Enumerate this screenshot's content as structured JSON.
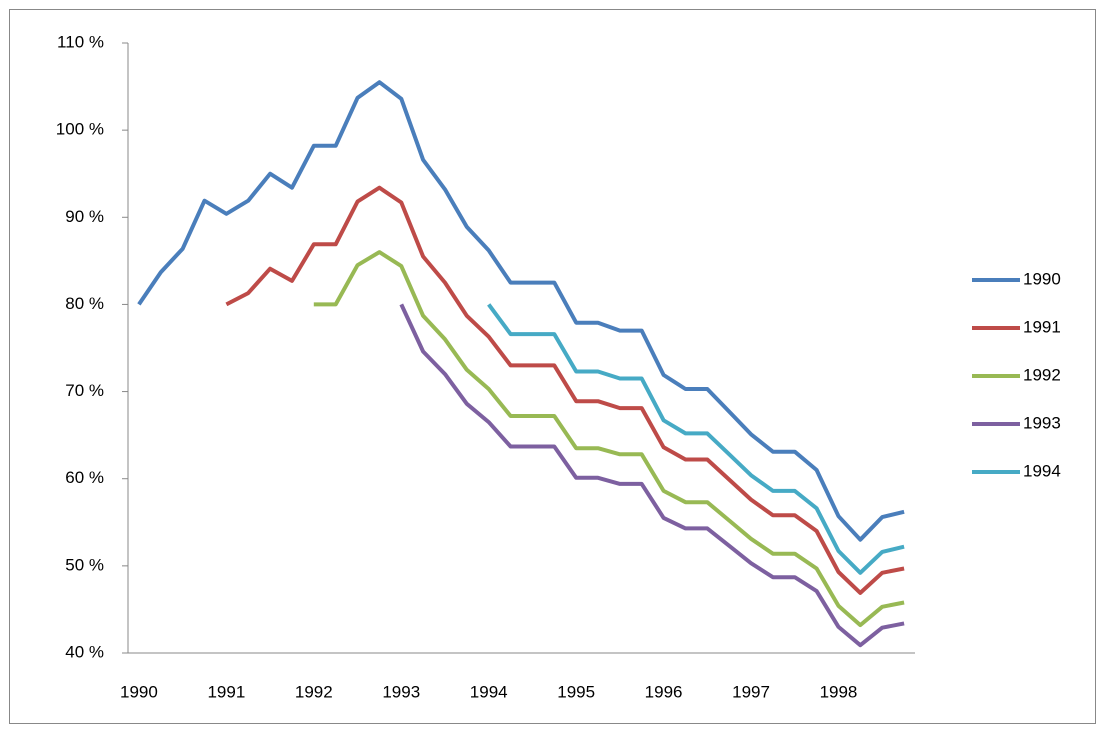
{
  "chart_data": {
    "type": "line",
    "categories": [
      "1990",
      null,
      null,
      null,
      "1991",
      null,
      null,
      null,
      "1992",
      null,
      null,
      null,
      "1993",
      null,
      null,
      null,
      "1994",
      null,
      null,
      null,
      "1995",
      null,
      null,
      null,
      "1996",
      null,
      null,
      null,
      "1997",
      null,
      null,
      null,
      "1998",
      null,
      null,
      null
    ],
    "series": [
      {
        "name": "1990",
        "color": "#4a7ebb",
        "values": [
          80.0,
          83.7,
          86.4,
          91.9,
          90.4,
          91.9,
          95.0,
          93.4,
          98.2,
          98.2,
          103.7,
          105.5,
          103.6,
          96.6,
          93.2,
          88.9,
          86.2,
          82.5,
          82.5,
          82.5,
          77.9,
          77.9,
          77.0,
          77.0,
          71.9,
          70.3,
          70.3,
          67.7,
          65.1,
          63.1,
          63.1,
          61.0,
          55.7,
          53.0,
          55.6,
          56.2
        ]
      },
      {
        "name": "1991",
        "color": "#be4b48",
        "values": [
          null,
          null,
          null,
          null,
          80.0,
          81.3,
          84.1,
          82.7,
          86.9,
          86.9,
          91.8,
          93.4,
          91.7,
          85.5,
          82.5,
          78.7,
          76.3,
          73.0,
          73.0,
          73.0,
          68.9,
          68.9,
          68.1,
          68.1,
          63.6,
          62.2,
          62.2,
          59.9,
          57.6,
          55.8,
          55.8,
          54.0,
          49.3,
          46.9,
          49.2,
          49.7
        ]
      },
      {
        "name": "1992",
        "color": "#98b954",
        "values": [
          null,
          null,
          null,
          null,
          null,
          null,
          null,
          null,
          80.0,
          80.0,
          84.5,
          86.0,
          84.4,
          78.7,
          76.0,
          72.5,
          70.3,
          67.2,
          67.2,
          67.2,
          63.5,
          63.5,
          62.8,
          62.8,
          58.6,
          57.3,
          57.3,
          55.2,
          53.1,
          51.4,
          51.4,
          49.7,
          45.4,
          43.2,
          45.3,
          45.8
        ]
      },
      {
        "name": "1993",
        "color": "#7d60a0",
        "values": [
          null,
          null,
          null,
          null,
          null,
          null,
          null,
          null,
          null,
          null,
          null,
          null,
          80.0,
          74.6,
          72.0,
          68.6,
          66.5,
          63.7,
          63.7,
          63.7,
          60.1,
          60.1,
          59.4,
          59.4,
          55.5,
          54.3,
          54.3,
          52.3,
          50.3,
          48.7,
          48.7,
          47.1,
          43.0,
          40.9,
          42.9,
          43.4
        ]
      },
      {
        "name": "1994",
        "color": "#46aac5",
        "values": [
          null,
          null,
          null,
          null,
          null,
          null,
          null,
          null,
          null,
          null,
          null,
          null,
          null,
          null,
          null,
          null,
          80.0,
          76.6,
          76.6,
          76.6,
          72.3,
          72.3,
          71.5,
          71.5,
          66.7,
          65.2,
          65.2,
          62.8,
          60.4,
          58.6,
          58.6,
          56.6,
          51.7,
          49.2,
          51.6,
          52.2
        ]
      }
    ],
    "ylim": [
      40,
      110
    ],
    "yticks": [
      {
        "value": 40,
        "label": "40 %"
      },
      {
        "value": 50,
        "label": "50 %"
      },
      {
        "value": 60,
        "label": "60 %"
      },
      {
        "value": 70,
        "label": "70 %"
      },
      {
        "value": 80,
        "label": "80 %"
      },
      {
        "value": 90,
        "label": "90 %"
      },
      {
        "value": 100,
        "label": "100 %"
      },
      {
        "value": 110,
        "label": "110 %"
      }
    ],
    "grid": false,
    "legend": "right"
  }
}
